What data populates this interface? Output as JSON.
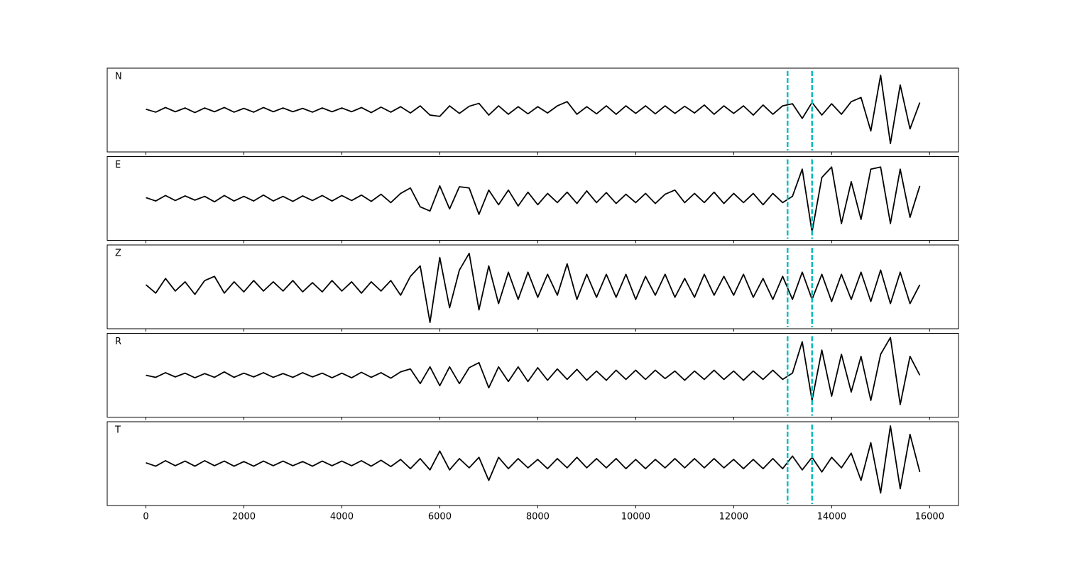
{
  "chart_data": {
    "type": "line",
    "subplots": true,
    "x": [
      0,
      200,
      400,
      600,
      800,
      1000,
      1200,
      1400,
      1600,
      1800,
      2000,
      2200,
      2400,
      2600,
      2800,
      3000,
      3200,
      3400,
      3600,
      3800,
      4000,
      4200,
      4400,
      4600,
      4800,
      5000,
      5200,
      5400,
      5600,
      5800,
      6000,
      6200,
      6400,
      6600,
      6800,
      7000,
      7200,
      7400,
      7600,
      7800,
      8000,
      8200,
      8400,
      8600,
      8800,
      9000,
      9200,
      9400,
      9600,
      9800,
      10000,
      10200,
      10400,
      10600,
      10800,
      11000,
      11200,
      11400,
      11600,
      11800,
      12000,
      12200,
      12400,
      12600,
      12800,
      13000,
      13200,
      13400,
      13600,
      13800,
      14000,
      14200,
      14400,
      14600,
      14800,
      15000,
      15200,
      15400,
      15600,
      15800
    ],
    "xlim": [
      -790,
      16590
    ],
    "xticks": [
      0,
      2000,
      4000,
      6000,
      8000,
      10000,
      12000,
      14000,
      16000
    ],
    "ylim": [
      -1,
      1
    ],
    "vlines": [
      13100,
      13600
    ],
    "vline_color": "#00bfbf",
    "series": [
      {
        "name": "N",
        "color": "#000000",
        "values": [
          0.02,
          -0.05,
          0.06,
          -0.04,
          0.05,
          -0.06,
          0.05,
          -0.04,
          0.06,
          -0.05,
          0.04,
          -0.05,
          0.06,
          -0.04,
          0.05,
          -0.04,
          0.04,
          -0.05,
          0.05,
          -0.04,
          0.05,
          -0.04,
          0.06,
          -0.06,
          0.07,
          -0.05,
          0.08,
          -0.07,
          0.1,
          -0.12,
          -0.15,
          0.1,
          -0.08,
          0.09,
          0.16,
          -0.12,
          0.1,
          -0.1,
          0.08,
          -0.09,
          0.08,
          -0.07,
          0.1,
          0.2,
          -0.1,
          0.08,
          -0.09,
          0.1,
          -0.1,
          0.1,
          -0.08,
          0.1,
          -0.09,
          0.1,
          -0.08,
          0.09,
          -0.07,
          0.12,
          -0.1,
          0.1,
          -0.08,
          0.1,
          -0.12,
          0.12,
          -0.1,
          0.1,
          0.15,
          -0.2,
          0.18,
          -0.12,
          0.15,
          -0.1,
          0.2,
          0.3,
          -0.5,
          0.83,
          -0.8,
          0.6,
          -0.45,
          0.18
        ]
      },
      {
        "name": "E",
        "color": "#000000",
        "values": [
          0.02,
          -0.06,
          0.07,
          -0.05,
          0.06,
          -0.04,
          0.05,
          -0.08,
          0.07,
          -0.06,
          0.05,
          -0.06,
          0.08,
          -0.06,
          0.05,
          -0.07,
          0.06,
          -0.05,
          0.07,
          -0.06,
          0.07,
          -0.05,
          0.08,
          -0.07,
          0.1,
          -0.1,
          0.12,
          0.25,
          -0.2,
          -0.3,
          0.3,
          -0.25,
          0.28,
          0.25,
          -0.38,
          0.2,
          -0.15,
          0.2,
          -0.18,
          0.15,
          -0.15,
          0.12,
          -0.1,
          0.15,
          -0.12,
          0.18,
          -0.1,
          0.14,
          -0.12,
          0.1,
          -0.1,
          0.12,
          -0.12,
          0.1,
          0.2,
          -0.1,
          0.12,
          -0.1,
          0.15,
          -0.12,
          0.12,
          -0.1,
          0.12,
          -0.15,
          0.12,
          -0.1,
          0.05,
          0.7,
          -0.8,
          0.5,
          0.75,
          -0.6,
          0.4,
          -0.5,
          0.7,
          0.75,
          -0.6,
          0.7,
          -0.45,
          0.3
        ]
      },
      {
        "name": "Z",
        "color": "#000000",
        "values": [
          0.05,
          -0.15,
          0.2,
          -0.1,
          0.12,
          -0.18,
          0.15,
          0.25,
          -0.15,
          0.12,
          -0.12,
          0.15,
          -0.1,
          0.12,
          -0.1,
          0.15,
          -0.12,
          0.1,
          -0.12,
          0.15,
          -0.1,
          0.12,
          -0.15,
          0.12,
          -0.1,
          0.15,
          -0.2,
          0.25,
          0.5,
          -0.85,
          0.7,
          -0.5,
          0.4,
          0.8,
          -0.55,
          0.5,
          -0.4,
          0.35,
          -0.3,
          0.35,
          -0.25,
          0.3,
          -0.2,
          0.55,
          -0.3,
          0.3,
          -0.25,
          0.3,
          -0.25,
          0.3,
          -0.3,
          0.25,
          -0.2,
          0.3,
          -0.25,
          0.2,
          -0.25,
          0.3,
          -0.2,
          0.25,
          -0.2,
          0.3,
          -0.25,
          0.2,
          -0.3,
          0.25,
          -0.3,
          0.35,
          -0.3,
          0.3,
          -0.35,
          0.3,
          -0.3,
          0.35,
          -0.35,
          0.4,
          -0.4,
          0.35,
          -0.4,
          0.05
        ]
      },
      {
        "name": "R",
        "color": "#000000",
        "values": [
          0.0,
          -0.05,
          0.06,
          -0.04,
          0.05,
          -0.06,
          0.04,
          -0.05,
          0.08,
          -0.05,
          0.05,
          -0.04,
          0.06,
          -0.05,
          0.04,
          -0.05,
          0.06,
          -0.04,
          0.05,
          -0.06,
          0.05,
          -0.06,
          0.07,
          -0.05,
          0.06,
          -0.07,
          0.08,
          0.15,
          -0.2,
          0.2,
          -0.25,
          0.2,
          -0.2,
          0.18,
          0.3,
          -0.3,
          0.2,
          -0.15,
          0.2,
          -0.15,
          0.18,
          -0.12,
          0.15,
          -0.1,
          0.14,
          -0.12,
          0.1,
          -0.12,
          0.12,
          -0.1,
          0.12,
          -0.1,
          0.12,
          -0.08,
          0.1,
          -0.12,
          0.1,
          -0.1,
          0.12,
          -0.1,
          0.1,
          -0.12,
          0.1,
          -0.1,
          0.12,
          -0.1,
          0.05,
          0.8,
          -0.6,
          0.6,
          -0.5,
          0.5,
          -0.4,
          0.45,
          -0.6,
          0.5,
          0.9,
          -0.7,
          0.45,
          0.0
        ]
      },
      {
        "name": "T",
        "color": "#000000",
        "values": [
          0.02,
          -0.06,
          0.07,
          -0.05,
          0.06,
          -0.06,
          0.07,
          -0.05,
          0.06,
          -0.06,
          0.05,
          -0.06,
          0.06,
          -0.05,
          0.06,
          -0.05,
          0.05,
          -0.06,
          0.06,
          -0.05,
          0.06,
          -0.05,
          0.07,
          -0.06,
          0.08,
          -0.07,
          0.1,
          -0.12,
          0.12,
          -0.15,
          0.3,
          -0.15,
          0.12,
          -0.1,
          0.15,
          -0.4,
          0.15,
          -0.12,
          0.12,
          -0.1,
          0.1,
          -0.12,
          0.12,
          -0.1,
          0.15,
          -0.1,
          0.12,
          -0.1,
          0.12,
          -0.12,
          0.1,
          -0.12,
          0.1,
          -0.1,
          0.12,
          -0.1,
          0.12,
          -0.1,
          0.12,
          -0.1,
          0.1,
          -0.12,
          0.1,
          -0.12,
          0.12,
          -0.12,
          0.18,
          -0.15,
          0.15,
          -0.2,
          0.15,
          -0.1,
          0.25,
          -0.4,
          0.5,
          -0.7,
          0.9,
          -0.6,
          0.7,
          -0.2
        ]
      }
    ]
  }
}
